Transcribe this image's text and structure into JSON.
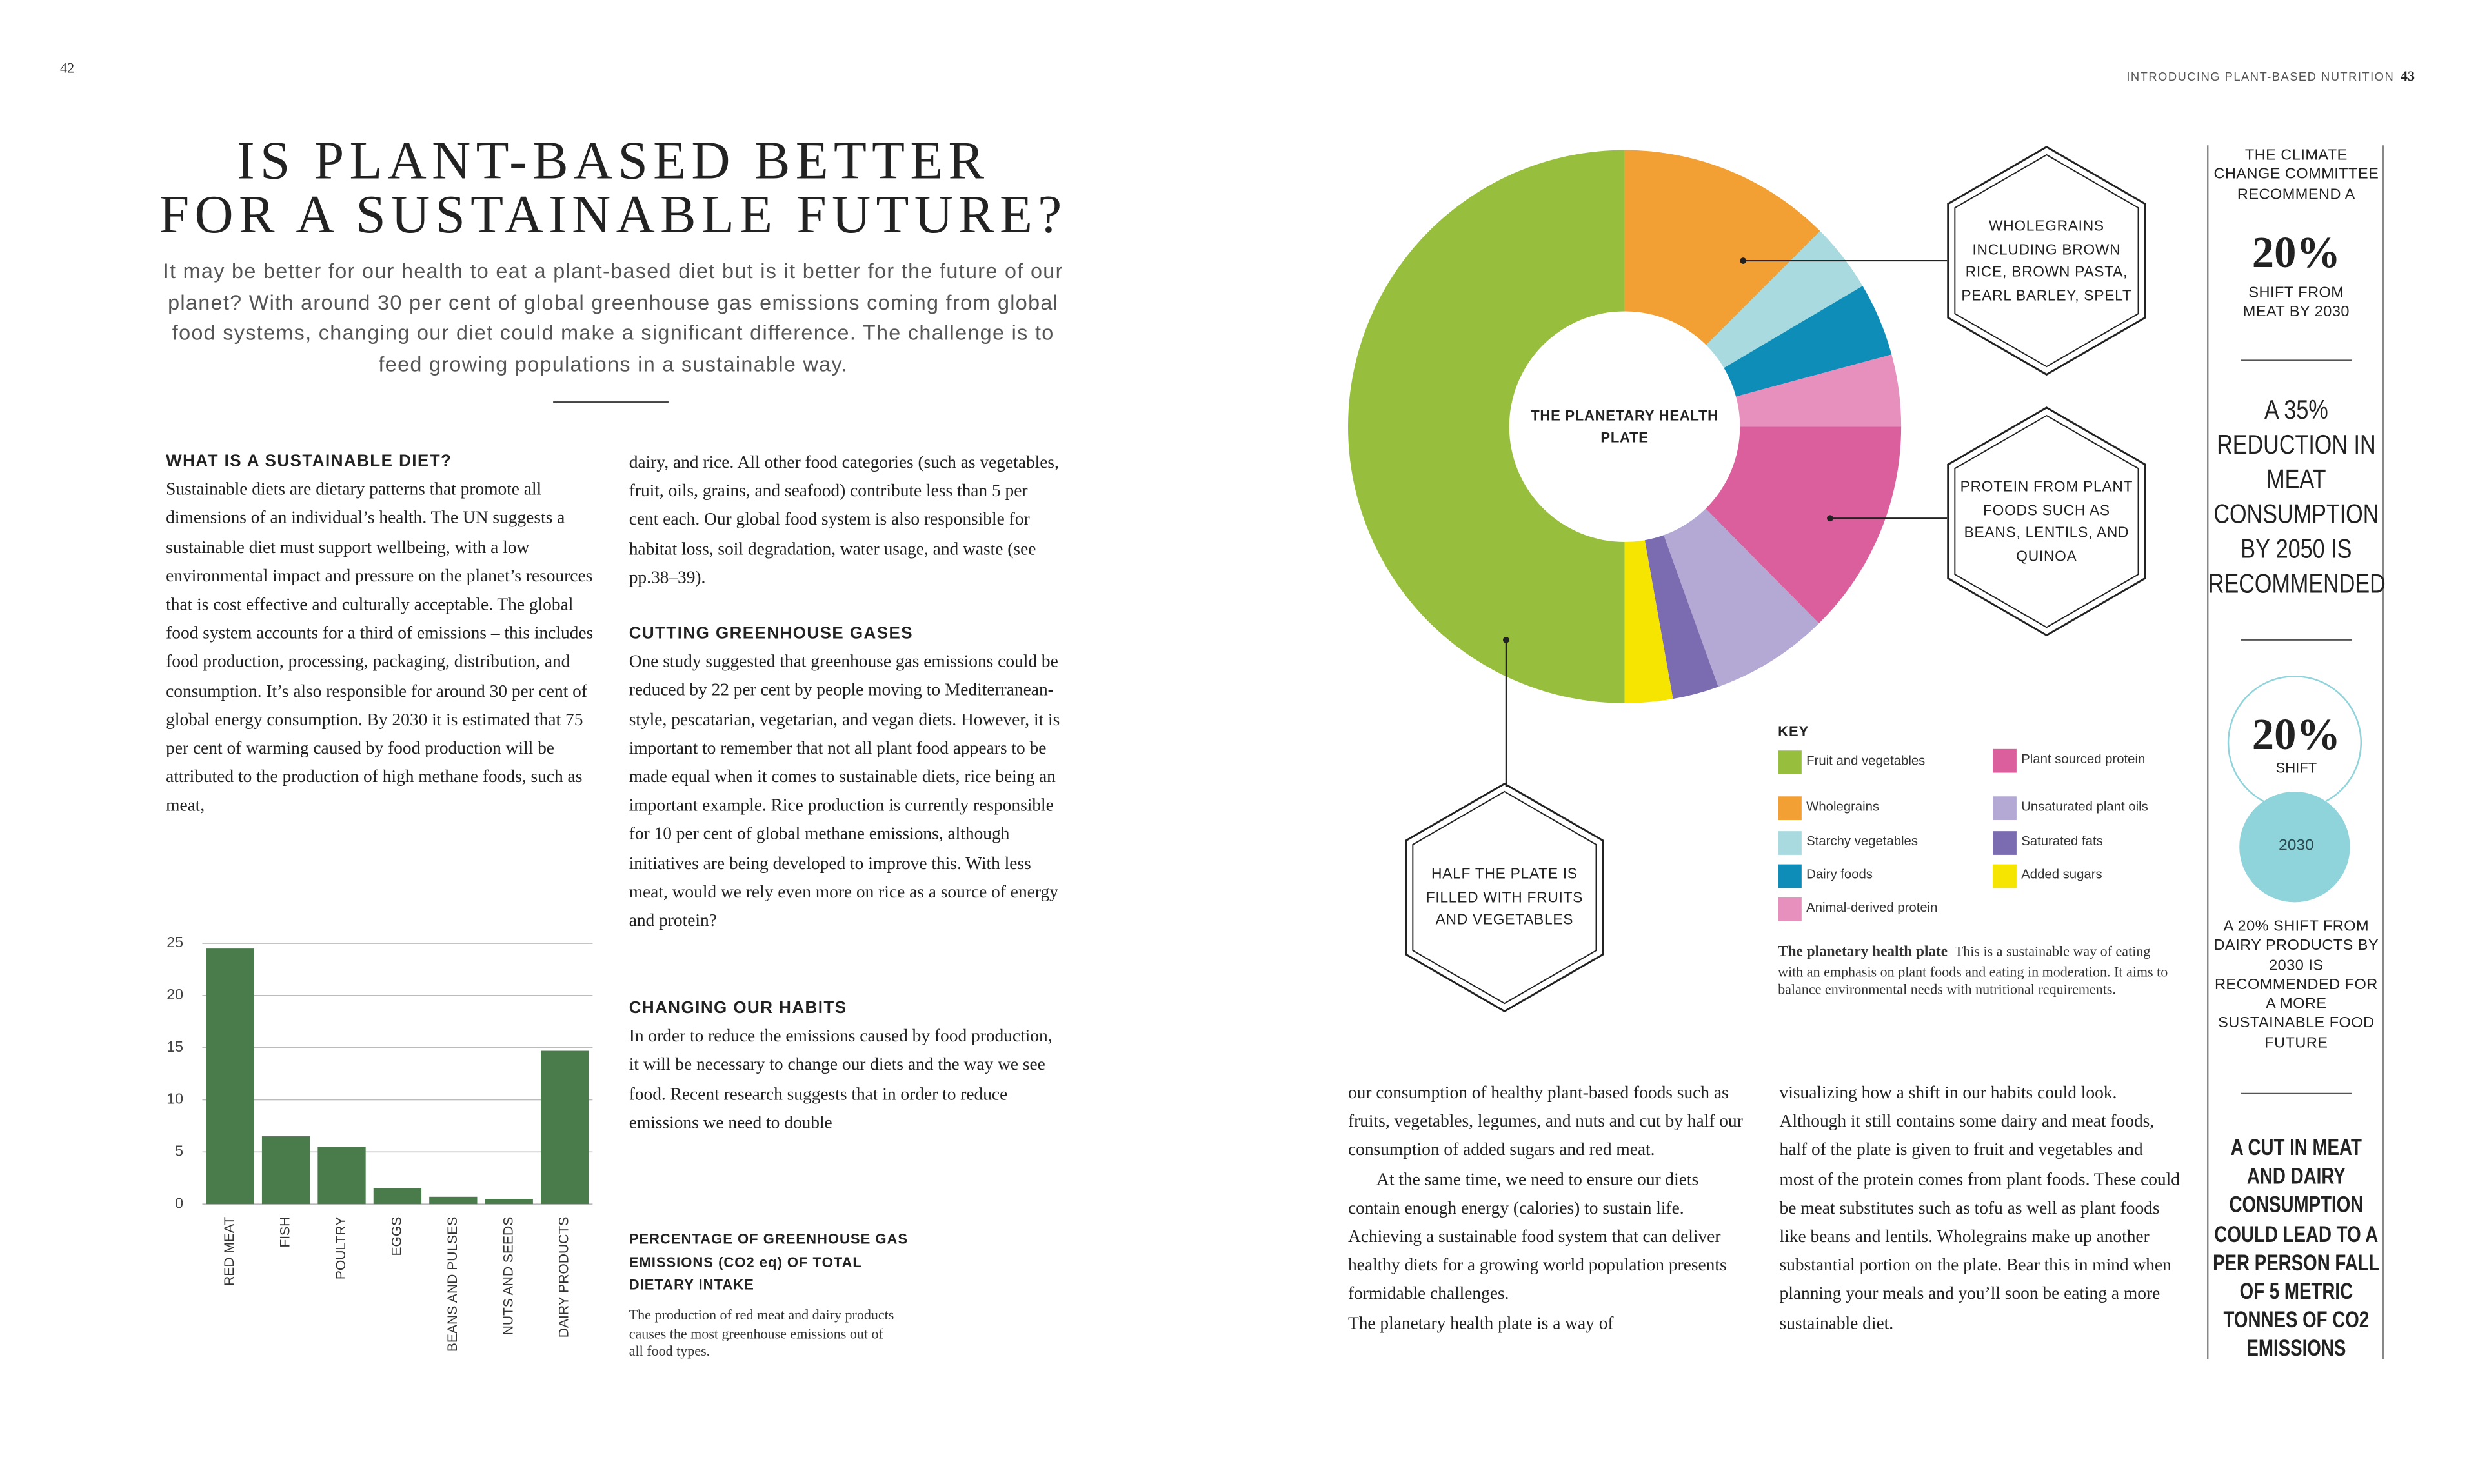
{
  "page_numbers": {
    "left": "42",
    "right": "43"
  },
  "header": {
    "running_head": "INTRODUCING PLANT-BASED NUTRITION"
  },
  "article": {
    "title": [
      "IS PLANT-BASED BETTER",
      "FOR A SUSTAINABLE FUTURE?"
    ],
    "intro": "It may be better for our health to eat a plant-based diet but is it better for the future of our planet? With around 30 per cent of global greenhouse gas emissions coming from global food systems, changing our diet could make a significant difference. The challenge is to feed growing populations in a sustainable way.",
    "blocks": [
      {
        "heading": "WHAT IS A SUSTAINABLE DIET?",
        "text": "Sustainable diets are dietary patterns that promote all dimensions of an individual’s health. The UN suggests a sustainable diet must support wellbeing, with a low environmental impact and pressure on the planet’s resources that is cost effective and culturally acceptable. The global food system accounts for a third of emissions – this includes food production, processing, packaging, distribution, and consumption. It’s also responsible for around 30 per cent of global energy consumption. By 2030 it is estimated that 75 per cent of warming caused by food production will be attributed to the production of high methane foods, such as meat,"
      },
      {
        "text": "dairy, and rice. All other food categories (such as vegetables, fruit, oils, grains, and seafood) contribute less than 5 per cent each. Our global food system is also responsible for habitat loss, soil degradation, water usage, and waste (see pp.38–39)."
      },
      {
        "heading": "CUTTING GREENHOUSE GASES",
        "text": "One study suggested that greenhouse gas emissions could be reduced by 22 per cent by people moving to Mediterranean-style, pescatarian, vegetarian, and vegan diets. However, it is important to remember that not all plant food appears to be made equal when it comes to sustainable diets, rice being an important example. Rice production is currently responsible for 10 per cent of global methane emissions, although initiatives are being developed to improve this. With less meat, would we rely even more on rice as a source of energy and protein?"
      },
      {
        "heading": "CHANGING OUR HABITS",
        "text": "In order to reduce the emissions caused by food production, it will be necessary to change our diets and the way we see food. Recent research suggests that in order to reduce emissions we need to double"
      },
      {
        "text": "our consumption of healthy plant-based foods such as fruits, vegetables, legumes, and nuts and cut by half our consumption of added sugars and red meat."
      },
      {
        "text": "At the same time, we need to ensure our diets contain enough energy (calories) to sustain life. Achieving a sustainable food system that can deliver healthy diets for a growing world population presents formidable challenges."
      },
      {
        "text": "The planetary health plate is a way of"
      },
      {
        "text": "visualizing how a shift in our habits could look. Although it still contains some dairy and meat foods, half of the plate is given to fruit and vegetables and most of the protein comes from plant foods. These could be meat substitutes such as tofu as well as plant foods like beans and lentils. Wholegrains make up another substantial portion on the plate. Bear this in mind when planning your meals and you’ll soon be eating a more sustainable diet."
      }
    ]
  },
  "chart_data": [
    {
      "type": "bar",
      "title": "PERCENTAGE OF GREENHOUSE GAS EMISSIONS (CO2 eq) OF TOTAL DIETARY INTAKE",
      "caption": "The production of red meat and dairy products causes the most greenhouse emissions out of all food types.",
      "categories": [
        "RED MEAT",
        "FISH",
        "POULTRY",
        "EGGS",
        "BEANS AND PULSES",
        "NUTS AND SEEDS",
        "DAIRY PRODUCTS"
      ],
      "values": [
        24.5,
        6.5,
        5.5,
        1.5,
        0.7,
        0.5,
        14.7
      ],
      "color": "#4a7b4b",
      "ylim": [
        0,
        25
      ],
      "yticks": [
        0,
        5,
        10,
        15,
        20,
        25
      ],
      "grid": true
    },
    {
      "type": "pie",
      "title": "THE PLANETARY HEALTH PLATE",
      "donut": true,
      "legend_title": "KEY",
      "categories": [
        "Fruit and vegetables",
        "Wholegrains",
        "Starchy vegetables",
        "Dairy foods",
        "Animal-derived protein",
        "Plant sourced protein",
        "Unsaturated plant oils",
        "Saturated fats",
        "Added sugars"
      ],
      "values": [
        50,
        12.5,
        4,
        4.3,
        4.2,
        12.6,
        6.9,
        2.7,
        2.8
      ],
      "colors": [
        "#97bf3d",
        "#f2a033",
        "#a8dadf",
        "#0e8db8",
        "#e78fbd",
        "#db5f9c",
        "#b3a9d4",
        "#7b6bb0",
        "#f6e500"
      ],
      "annotations": [
        {
          "category": "Wholegrains",
          "text": "WHOLEGRAINS INCLUDING BROWN RICE, BROWN PASTA, PEARL BARLEY, SPELT"
        },
        {
          "category": "Plant sourced protein",
          "text": "PROTEIN FROM PLANT FOODS SUCH AS BEANS, LENTILS, AND QUINOA"
        },
        {
          "category": "Fruit and vegetables",
          "text": "HALF THE PLATE IS FILLED WITH FRUITS AND VEGETABLES"
        }
      ],
      "caption_title": "The planetary health plate",
      "caption": "This is a sustainable way of eating with an emphasis on plant foods and eating in moderation. It aims to balance environmental needs with nutritional requirements."
    }
  ],
  "sidebar": {
    "meat": {
      "lead": "THE CLIMATE CHANGE COMMITTEE RECOMMEND A",
      "figure": "20%",
      "tail": "SHIFT FROM MEAT BY 2030"
    },
    "reduction": "A 35% REDUCTION IN MEAT CONSUMPTION BY 2050 IS RECOMMENDED",
    "dairy": {
      "figure": "20%",
      "figure_label": "SHIFT",
      "year": "2030",
      "text": "A 20% SHIFT FROM DAIRY PRODUCTS BY 2030 IS RECOMMENDED FOR A MORE SUSTAINABLE FOOD FUTURE"
    },
    "cut": "A CUT IN MEAT AND DAIRY CONSUMPTION COULD LEAD TO A PER PERSON FALL OF 5 METRIC TONNES OF CO2 EMISSIONS"
  }
}
